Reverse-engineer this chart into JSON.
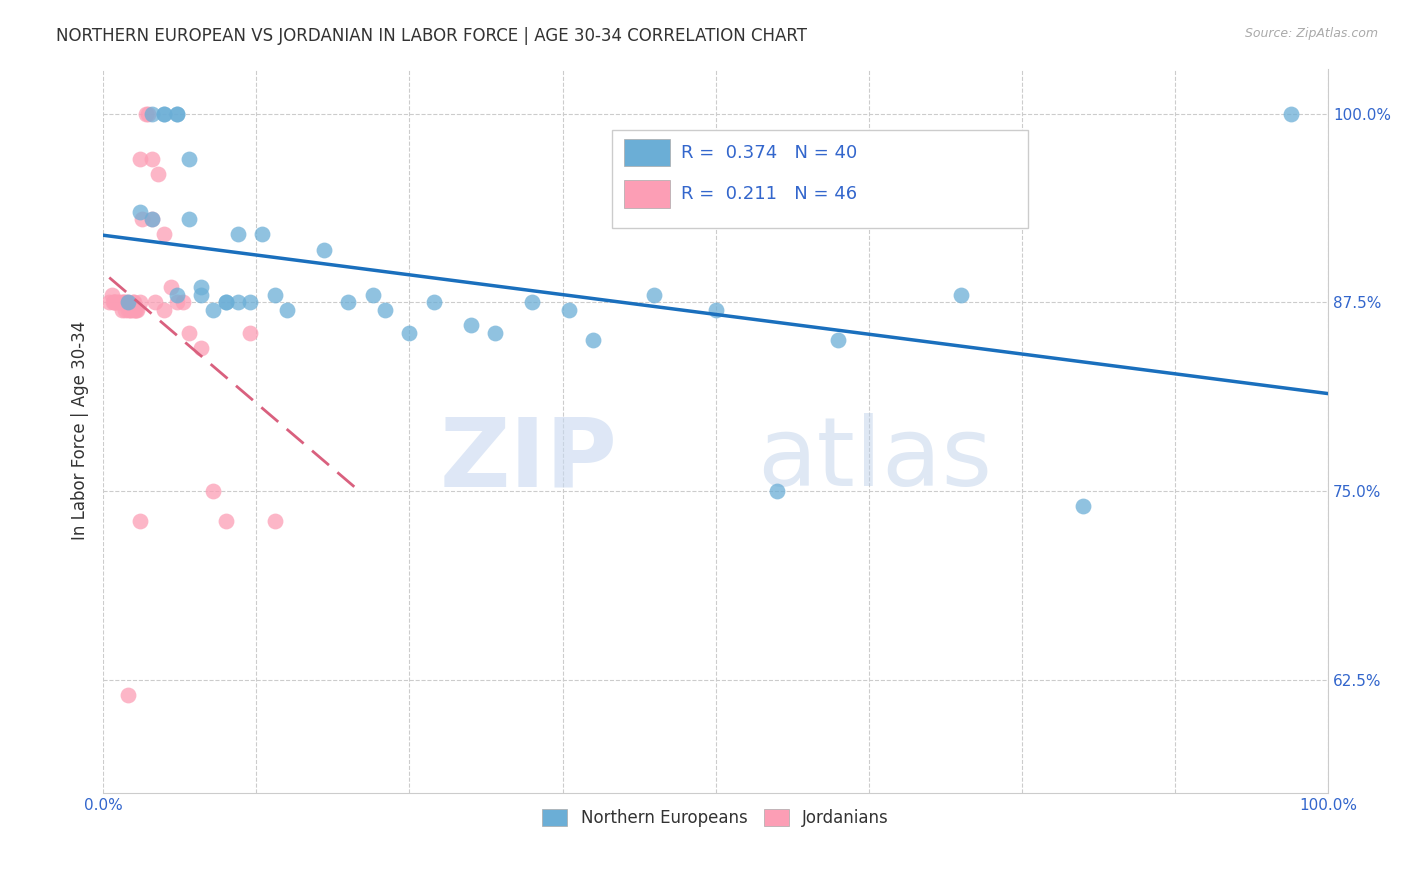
{
  "title": "NORTHERN EUROPEAN VS JORDANIAN IN LABOR FORCE | AGE 30-34 CORRELATION CHART",
  "source": "Source: ZipAtlas.com",
  "ylabel": "In Labor Force | Age 30-34",
  "xlim": [
    0.0,
    1.0
  ],
  "ylim": [
    0.55,
    1.03
  ],
  "xtick_positions": [
    0.0,
    0.125,
    0.25,
    0.375,
    0.5,
    0.625,
    0.75,
    0.875,
    1.0
  ],
  "xticklabels": [
    "0.0%",
    "",
    "",
    "",
    "",
    "",
    "",
    "",
    "100.0%"
  ],
  "ytick_positions": [
    0.625,
    0.75,
    0.875,
    1.0
  ],
  "ytick_labels": [
    "62.5%",
    "75.0%",
    "87.5%",
    "100.0%"
  ],
  "blue_R": 0.374,
  "blue_N": 40,
  "pink_R": 0.211,
  "pink_N": 46,
  "blue_color": "#6baed6",
  "pink_color": "#fc9eb5",
  "blue_line_color": "#1a6fbd",
  "pink_line_color": "#d9607e",
  "legend_label_blue": "Northern Europeans",
  "legend_label_pink": "Jordanians",
  "blue_scatter_x": [
    0.02,
    0.04,
    0.05,
    0.05,
    0.06,
    0.06,
    0.07,
    0.07,
    0.08,
    0.09,
    0.1,
    0.11,
    0.11,
    0.12,
    0.13,
    0.14,
    0.15,
    0.18,
    0.2,
    0.22,
    0.25,
    0.27,
    0.3,
    0.32,
    0.35,
    0.38,
    0.4,
    0.45,
    0.5,
    0.55,
    0.6,
    0.7,
    0.8,
    0.97,
    0.03,
    0.04,
    0.06,
    0.08,
    0.1,
    0.23
  ],
  "blue_scatter_y": [
    0.875,
    1.0,
    1.0,
    1.0,
    1.0,
    1.0,
    0.97,
    0.93,
    0.885,
    0.87,
    0.875,
    0.92,
    0.875,
    0.875,
    0.92,
    0.88,
    0.87,
    0.91,
    0.875,
    0.88,
    0.855,
    0.875,
    0.86,
    0.855,
    0.875,
    0.87,
    0.85,
    0.88,
    0.87,
    0.75,
    0.85,
    0.88,
    0.74,
    1.0,
    0.935,
    0.93,
    0.88,
    0.88,
    0.875,
    0.87
  ],
  "pink_scatter_x": [
    0.005,
    0.007,
    0.008,
    0.009,
    0.01,
    0.01,
    0.012,
    0.013,
    0.015,
    0.015,
    0.016,
    0.017,
    0.018,
    0.019,
    0.02,
    0.02,
    0.022,
    0.023,
    0.024,
    0.025,
    0.025,
    0.026,
    0.027,
    0.028,
    0.03,
    0.03,
    0.032,
    0.035,
    0.037,
    0.04,
    0.04,
    0.042,
    0.045,
    0.05,
    0.05,
    0.055,
    0.06,
    0.065,
    0.07,
    0.08,
    0.09,
    0.1,
    0.12,
    0.14,
    0.02,
    0.03
  ],
  "pink_scatter_y": [
    0.875,
    0.88,
    0.875,
    0.875,
    0.875,
    0.875,
    0.875,
    0.875,
    0.875,
    0.87,
    0.875,
    0.875,
    0.87,
    0.875,
    0.87,
    0.875,
    0.87,
    0.87,
    0.875,
    0.875,
    0.87,
    0.87,
    0.87,
    0.87,
    0.875,
    0.97,
    0.93,
    1.0,
    1.0,
    0.97,
    0.93,
    0.875,
    0.96,
    0.92,
    0.87,
    0.885,
    0.875,
    0.875,
    0.855,
    0.845,
    0.75,
    0.73,
    0.855,
    0.73,
    0.615,
    0.73
  ]
}
